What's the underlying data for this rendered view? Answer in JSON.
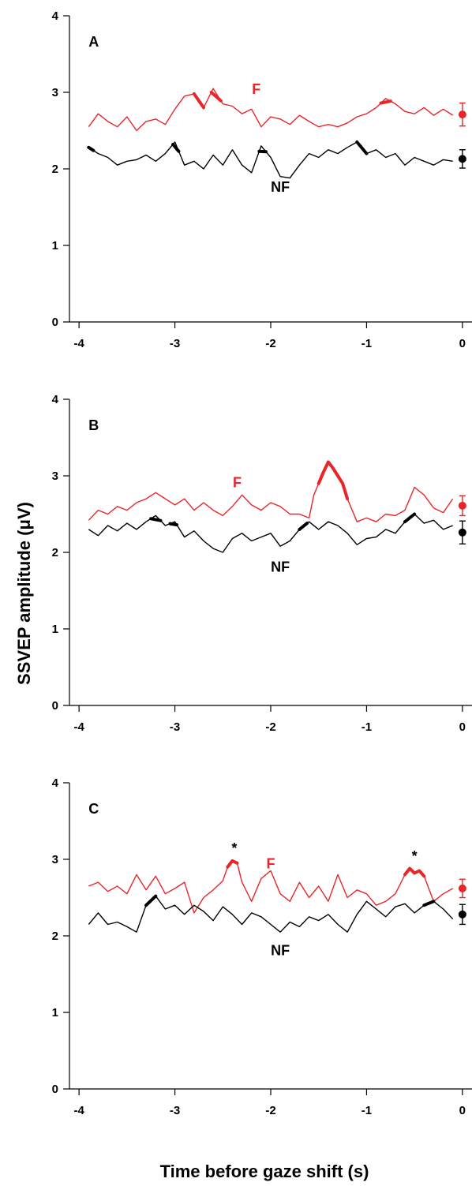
{
  "colors": {
    "F": "#e8262a",
    "NF": "#000000"
  },
  "ylabel": "SSVEP amplitude (μV)",
  "xlabel": "Time before gaze shift (s)",
  "chart_data": [
    {
      "type": "line",
      "panel": "A",
      "xlim": [
        -4.1,
        0.1
      ],
      "ylim": [
        0,
        4
      ],
      "xticks": [
        -4,
        -3,
        -2,
        -1,
        0
      ],
      "yticks": [
        0,
        1,
        2,
        3,
        4
      ],
      "grid": false,
      "series_labels": {
        "F": "F",
        "NF": "NF"
      },
      "series": [
        {
          "name": "F",
          "x": [
            -3.9,
            -3.8,
            -3.7,
            -3.6,
            -3.5,
            -3.4,
            -3.3,
            -3.2,
            -3.1,
            -3.0,
            -2.9,
            -2.8,
            -2.7,
            -2.6,
            -2.5,
            -2.4,
            -2.3,
            -2.2,
            -2.1,
            -2.0,
            -1.9,
            -1.8,
            -1.7,
            -1.6,
            -1.5,
            -1.4,
            -1.3,
            -1.2,
            -1.1,
            -1.0,
            -0.9,
            -0.8,
            -0.7,
            -0.6,
            -0.5,
            -0.4,
            -0.3,
            -0.2,
            -0.1
          ],
          "y": [
            2.55,
            2.72,
            2.62,
            2.55,
            2.68,
            2.5,
            2.62,
            2.65,
            2.58,
            2.78,
            2.95,
            2.98,
            2.8,
            3.05,
            2.85,
            2.82,
            2.72,
            2.78,
            2.55,
            2.68,
            2.65,
            2.58,
            2.7,
            2.62,
            2.55,
            2.58,
            2.55,
            2.6,
            2.68,
            2.72,
            2.8,
            2.92,
            2.85,
            2.75,
            2.72,
            2.8,
            2.7,
            2.78,
            2.7
          ],
          "highlight_ranges": [
            [
              -2.85,
              -2.7
            ],
            [
              -2.62,
              -2.52
            ],
            [
              -0.85,
              -0.75
            ]
          ],
          "endpoint": {
            "x": 0,
            "y": 2.71,
            "err": 0.15
          }
        },
        {
          "name": "NF",
          "x": [
            -3.9,
            -3.8,
            -3.7,
            -3.6,
            -3.5,
            -3.4,
            -3.3,
            -3.2,
            -3.1,
            -3.0,
            -2.9,
            -2.8,
            -2.7,
            -2.6,
            -2.5,
            -2.4,
            -2.3,
            -2.2,
            -2.1,
            -2.0,
            -1.9,
            -1.8,
            -1.7,
            -1.6,
            -1.5,
            -1.4,
            -1.3,
            -1.2,
            -1.1,
            -1.0,
            -0.9,
            -0.8,
            -0.7,
            -0.6,
            -0.5,
            -0.4,
            -0.3,
            -0.2,
            -0.1
          ],
          "y": [
            2.28,
            2.2,
            2.15,
            2.05,
            2.1,
            2.12,
            2.18,
            2.1,
            2.2,
            2.35,
            2.05,
            2.1,
            2.0,
            2.18,
            2.05,
            2.25,
            2.05,
            1.95,
            2.3,
            2.15,
            1.9,
            1.88,
            2.05,
            2.2,
            2.15,
            2.25,
            2.2,
            2.28,
            2.35,
            2.2,
            2.25,
            2.15,
            2.2,
            2.05,
            2.15,
            2.1,
            2.05,
            2.12,
            2.1
          ],
          "highlight_ranges": [
            [
              -3.9,
              -3.85
            ],
            [
              -3.02,
              -2.96
            ],
            [
              -2.12,
              -2.05
            ],
            [
              -1.12,
              -1.0
            ]
          ],
          "endpoint": {
            "x": 0,
            "y": 2.13,
            "err": 0.12
          }
        }
      ]
    },
    {
      "type": "line",
      "panel": "B",
      "xlim": [
        -4.1,
        0.1
      ],
      "ylim": [
        0,
        4
      ],
      "xticks": [
        -4,
        -3,
        -2,
        -1,
        0
      ],
      "yticks": [
        0,
        1,
        2,
        3,
        4
      ],
      "grid": false,
      "series_labels": {
        "F": "F",
        "NF": "NF"
      },
      "series": [
        {
          "name": "F",
          "x": [
            -3.9,
            -3.8,
            -3.7,
            -3.6,
            -3.5,
            -3.4,
            -3.3,
            -3.2,
            -3.1,
            -3.0,
            -2.9,
            -2.8,
            -2.7,
            -2.6,
            -2.5,
            -2.4,
            -2.3,
            -2.2,
            -2.1,
            -2.0,
            -1.9,
            -1.8,
            -1.7,
            -1.6,
            -1.55,
            -1.5,
            -1.45,
            -1.4,
            -1.35,
            -1.3,
            -1.25,
            -1.2,
            -1.1,
            -1.0,
            -0.9,
            -0.8,
            -0.7,
            -0.6,
            -0.5,
            -0.4,
            -0.3,
            -0.2,
            -0.1
          ],
          "y": [
            2.42,
            2.55,
            2.5,
            2.6,
            2.55,
            2.65,
            2.7,
            2.78,
            2.7,
            2.62,
            2.7,
            2.55,
            2.65,
            2.55,
            2.48,
            2.6,
            2.75,
            2.62,
            2.55,
            2.65,
            2.6,
            2.5,
            2.5,
            2.45,
            2.75,
            2.9,
            3.05,
            3.18,
            3.1,
            3.0,
            2.9,
            2.7,
            2.4,
            2.45,
            2.4,
            2.5,
            2.48,
            2.55,
            2.85,
            2.75,
            2.58,
            2.52,
            2.7
          ],
          "highlight_ranges": [
            [
              -1.5,
              -1.2
            ]
          ],
          "endpoint": {
            "x": 0,
            "y": 2.61,
            "err": 0.13
          }
        },
        {
          "name": "NF",
          "x": [
            -3.9,
            -3.8,
            -3.7,
            -3.6,
            -3.5,
            -3.4,
            -3.3,
            -3.2,
            -3.1,
            -3.0,
            -2.9,
            -2.8,
            -2.7,
            -2.6,
            -2.5,
            -2.4,
            -2.3,
            -2.2,
            -2.1,
            -2.0,
            -1.9,
            -1.8,
            -1.7,
            -1.6,
            -1.5,
            -1.4,
            -1.3,
            -1.2,
            -1.1,
            -1.0,
            -0.9,
            -0.8,
            -0.7,
            -0.6,
            -0.5,
            -0.4,
            -0.3,
            -0.2,
            -0.1
          ],
          "y": [
            2.3,
            2.22,
            2.35,
            2.28,
            2.38,
            2.3,
            2.4,
            2.48,
            2.35,
            2.4,
            2.2,
            2.28,
            2.15,
            2.05,
            2.0,
            2.18,
            2.25,
            2.15,
            2.2,
            2.25,
            2.08,
            2.15,
            2.3,
            2.4,
            2.3,
            2.4,
            2.35,
            2.25,
            2.1,
            2.18,
            2.2,
            2.3,
            2.25,
            2.4,
            2.5,
            2.38,
            2.42,
            2.3,
            2.35
          ],
          "highlight_ranges": [
            [
              -3.25,
              -3.15
            ],
            [
              -3.05,
              -2.98
            ],
            [
              -1.7,
              -1.62
            ],
            [
              -0.6,
              -0.5
            ]
          ],
          "endpoint": {
            "x": 0,
            "y": 2.26,
            "err": 0.15
          }
        }
      ]
    },
    {
      "type": "line",
      "panel": "C",
      "xlim": [
        -4.1,
        0.1
      ],
      "ylim": [
        0,
        4
      ],
      "xticks": [
        -4,
        -3,
        -2,
        -1,
        0
      ],
      "yticks": [
        0,
        1,
        2,
        3,
        4
      ],
      "grid": false,
      "series_labels": {
        "F": "F",
        "NF": "NF"
      },
      "annotations": [
        {
          "text": "*",
          "x": -2.38,
          "y": 3.08
        },
        {
          "text": "*",
          "x": -0.5,
          "y": 2.98
        }
      ],
      "series": [
        {
          "name": "F",
          "x": [
            -3.9,
            -3.8,
            -3.7,
            -3.6,
            -3.5,
            -3.4,
            -3.3,
            -3.2,
            -3.1,
            -3.0,
            -2.9,
            -2.8,
            -2.7,
            -2.6,
            -2.5,
            -2.45,
            -2.4,
            -2.35,
            -2.3,
            -2.2,
            -2.1,
            -2.0,
            -1.9,
            -1.8,
            -1.7,
            -1.6,
            -1.5,
            -1.4,
            -1.3,
            -1.2,
            -1.1,
            -1.0,
            -0.9,
            -0.8,
            -0.7,
            -0.6,
            -0.55,
            -0.5,
            -0.45,
            -0.4,
            -0.3,
            -0.2,
            -0.1
          ],
          "y": [
            2.65,
            2.7,
            2.58,
            2.65,
            2.55,
            2.8,
            2.6,
            2.78,
            2.55,
            2.62,
            2.7,
            2.3,
            2.5,
            2.6,
            2.72,
            2.9,
            2.98,
            2.95,
            2.7,
            2.45,
            2.75,
            2.85,
            2.55,
            2.45,
            2.7,
            2.5,
            2.65,
            2.45,
            2.8,
            2.5,
            2.6,
            2.55,
            2.4,
            2.45,
            2.55,
            2.8,
            2.88,
            2.82,
            2.85,
            2.78,
            2.45,
            2.55,
            2.62
          ],
          "highlight_ranges": [
            [
              -2.45,
              -2.35
            ],
            [
              -0.6,
              -0.4
            ]
          ],
          "endpoint": {
            "x": 0,
            "y": 2.62,
            "err": 0.12
          }
        },
        {
          "name": "NF",
          "x": [
            -3.9,
            -3.8,
            -3.7,
            -3.6,
            -3.5,
            -3.4,
            -3.3,
            -3.2,
            -3.1,
            -3.0,
            -2.9,
            -2.8,
            -2.7,
            -2.6,
            -2.5,
            -2.4,
            -2.3,
            -2.2,
            -2.1,
            -2.0,
            -1.9,
            -1.8,
            -1.7,
            -1.6,
            -1.5,
            -1.4,
            -1.3,
            -1.2,
            -1.1,
            -1.0,
            -0.9,
            -0.8,
            -0.7,
            -0.6,
            -0.5,
            -0.4,
            -0.3,
            -0.2,
            -0.1
          ],
          "y": [
            2.15,
            2.3,
            2.15,
            2.18,
            2.12,
            2.05,
            2.4,
            2.52,
            2.35,
            2.4,
            2.28,
            2.4,
            2.32,
            2.2,
            2.38,
            2.28,
            2.15,
            2.3,
            2.25,
            2.15,
            2.05,
            2.18,
            2.12,
            2.25,
            2.2,
            2.28,
            2.15,
            2.05,
            2.28,
            2.45,
            2.35,
            2.25,
            2.38,
            2.42,
            2.3,
            2.4,
            2.45,
            2.35,
            2.22
          ],
          "highlight_ranges": [
            [
              -3.3,
              -3.12
            ],
            [
              -0.4,
              -0.3
            ]
          ],
          "endpoint": {
            "x": 0,
            "y": 2.28,
            "err": 0.13
          }
        }
      ]
    }
  ]
}
